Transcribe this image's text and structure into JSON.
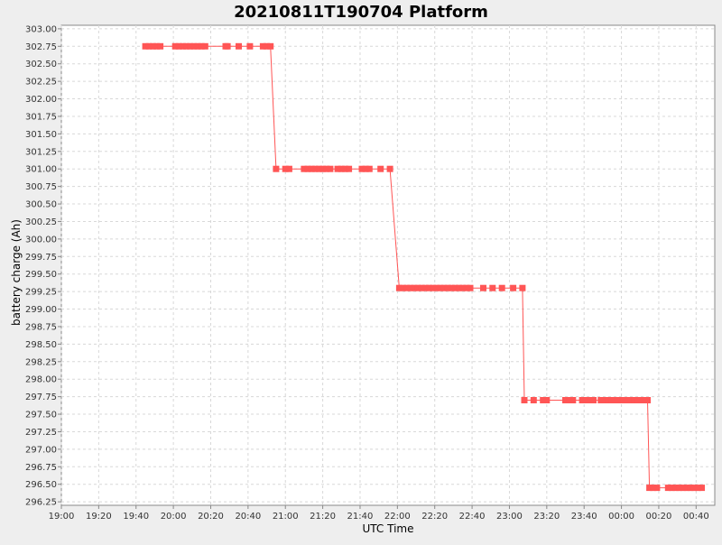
{
  "chart_data": {
    "type": "line",
    "title": "20210811T190704 Platform",
    "xlabel": "UTC Time",
    "ylabel": "battery charge (Ah)",
    "x_ticks": [
      "19:00",
      "19:20",
      "19:40",
      "20:00",
      "20:20",
      "20:40",
      "21:00",
      "21:20",
      "21:40",
      "22:00",
      "22:20",
      "22:40",
      "23:00",
      "23:20",
      "23:40",
      "00:00",
      "00:20",
      "00:40"
    ],
    "xlim": [
      "19:00",
      "00:50"
    ],
    "ylim": [
      296.2,
      303.05
    ],
    "y_ticks": [
      "296.25",
      "296.50",
      "296.75",
      "297.00",
      "297.25",
      "297.50",
      "297.75",
      "298.00",
      "298.25",
      "298.50",
      "298.75",
      "299.00",
      "299.25",
      "299.50",
      "299.75",
      "300.00",
      "300.25",
      "300.50",
      "300.75",
      "301.00",
      "301.25",
      "301.50",
      "301.75",
      "302.00",
      "302.25",
      "302.50",
      "302.75",
      "303.00"
    ],
    "grid": true,
    "legend": "none",
    "series_color": "#ff5555",
    "series": [
      {
        "points": [
          [
            "19:45",
            302.75
          ],
          [
            "19:47",
            302.75
          ],
          [
            "19:49",
            302.75
          ],
          [
            "19:51",
            302.75
          ],
          [
            "19:53",
            302.75
          ],
          [
            "20:01",
            302.75
          ],
          [
            "20:03",
            302.75
          ],
          [
            "20:05",
            302.75
          ],
          [
            "20:07",
            302.75
          ],
          [
            "20:09",
            302.75
          ],
          [
            "20:11",
            302.75
          ],
          [
            "20:13",
            302.75
          ],
          [
            "20:15",
            302.75
          ],
          [
            "20:17",
            302.75
          ],
          [
            "20:28",
            302.75
          ],
          [
            "20:29",
            302.75
          ],
          [
            "20:35",
            302.75
          ],
          [
            "20:41",
            302.75
          ],
          [
            "20:48",
            302.75
          ],
          [
            "20:50",
            302.75
          ],
          [
            "20:52",
            302.75
          ],
          [
            "20:55",
            301.0
          ],
          [
            "21:00",
            301.0
          ],
          [
            "21:02",
            301.0
          ],
          [
            "21:10",
            301.0
          ],
          [
            "21:12",
            301.0
          ],
          [
            "21:14",
            301.0
          ],
          [
            "21:16",
            301.0
          ],
          [
            "21:18",
            301.0
          ],
          [
            "21:20",
            301.0
          ],
          [
            "21:22",
            301.0
          ],
          [
            "21:24",
            301.0
          ],
          [
            "21:28",
            301.0
          ],
          [
            "21:30",
            301.0
          ],
          [
            "21:32",
            301.0
          ],
          [
            "21:34",
            301.0
          ],
          [
            "21:41",
            301.0
          ],
          [
            "21:43",
            301.0
          ],
          [
            "21:45",
            301.0
          ],
          [
            "21:51",
            301.0
          ],
          [
            "21:56",
            301.0
          ],
          [
            "22:01",
            299.3
          ],
          [
            "22:03",
            299.3
          ],
          [
            "22:05",
            299.3
          ],
          [
            "22:07",
            299.3
          ],
          [
            "22:09",
            299.3
          ],
          [
            "22:11",
            299.3
          ],
          [
            "22:13",
            299.3
          ],
          [
            "22:15",
            299.3
          ],
          [
            "22:17",
            299.3
          ],
          [
            "22:19",
            299.3
          ],
          [
            "22:21",
            299.3
          ],
          [
            "22:23",
            299.3
          ],
          [
            "22:25",
            299.3
          ],
          [
            "22:27",
            299.3
          ],
          [
            "22:29",
            299.3
          ],
          [
            "22:31",
            299.3
          ],
          [
            "22:33",
            299.3
          ],
          [
            "22:35",
            299.3
          ],
          [
            "22:37",
            299.3
          ],
          [
            "22:39",
            299.3
          ],
          [
            "22:46",
            299.3
          ],
          [
            "22:51",
            299.3
          ],
          [
            "22:56",
            299.3
          ],
          [
            "23:02",
            299.3
          ],
          [
            "23:07",
            299.3
          ],
          [
            "23:08",
            297.7
          ],
          [
            "23:13",
            297.7
          ],
          [
            "23:18",
            297.7
          ],
          [
            "23:20",
            297.7
          ],
          [
            "23:30",
            297.7
          ],
          [
            "23:32",
            297.7
          ],
          [
            "23:34",
            297.7
          ],
          [
            "23:39",
            297.7
          ],
          [
            "23:41",
            297.7
          ],
          [
            "23:43",
            297.7
          ],
          [
            "23:45",
            297.7
          ],
          [
            "23:49",
            297.7
          ],
          [
            "23:51",
            297.7
          ],
          [
            "23:53",
            297.7
          ],
          [
            "23:55",
            297.7
          ],
          [
            "23:57",
            297.7
          ],
          [
            "23:59",
            297.7
          ],
          [
            "00:01",
            297.7
          ],
          [
            "00:03",
            297.7
          ],
          [
            "00:05",
            297.7
          ],
          [
            "00:07",
            297.7
          ],
          [
            "00:09",
            297.7
          ],
          [
            "00:11",
            297.7
          ],
          [
            "00:14",
            297.7
          ],
          [
            "00:15",
            296.45
          ],
          [
            "00:17",
            296.45
          ],
          [
            "00:19",
            296.45
          ],
          [
            "00:25",
            296.45
          ],
          [
            "00:27",
            296.45
          ],
          [
            "00:29",
            296.45
          ],
          [
            "00:31",
            296.45
          ],
          [
            "00:33",
            296.45
          ],
          [
            "00:35",
            296.45
          ],
          [
            "00:37",
            296.45
          ],
          [
            "00:39",
            296.45
          ],
          [
            "00:41",
            296.45
          ],
          [
            "00:43",
            296.45
          ]
        ]
      }
    ]
  }
}
